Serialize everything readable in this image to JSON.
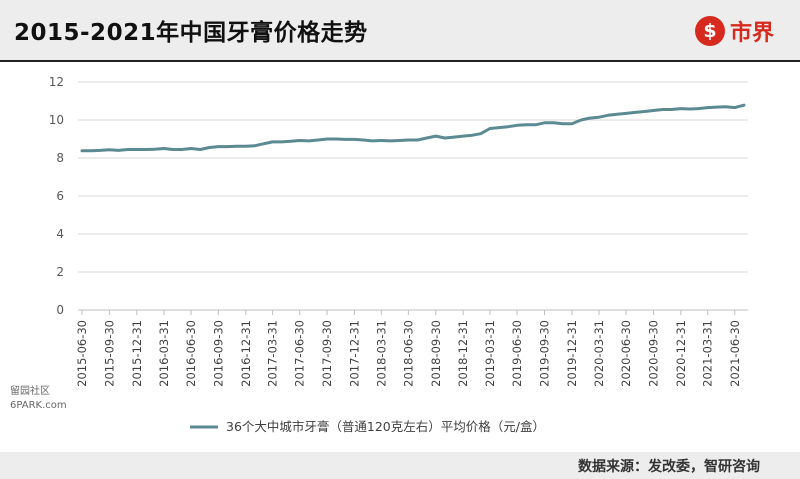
{
  "header": {
    "title": "2015-2021年中国牙膏价格走势",
    "brand_icon": "$",
    "brand_text": "市界"
  },
  "source": "数据来源：发改委，智研咨询",
  "watermark": {
    "line1": "留园社区",
    "line2": "6PARK.com"
  },
  "colors": {
    "line": "#5b8a93",
    "axis": "#bfbfbf",
    "grid": "#d9d9d9",
    "brand": "#d72a1e"
  },
  "chart_data": {
    "type": "line",
    "title": "",
    "xlabel": "",
    "ylabel": "",
    "ylim": [
      0,
      12
    ],
    "yticks": [
      0,
      2,
      4,
      6,
      8,
      10,
      12
    ],
    "grid": true,
    "legend_position": "bottom",
    "xticks": [
      "2015-06-30",
      "2015-09-30",
      "2015-12-31",
      "2016-03-31",
      "2016-06-30",
      "2016-09-30",
      "2016-12-31",
      "2017-03-31",
      "2017-06-30",
      "2017-09-30",
      "2017-12-31",
      "2018-03-31",
      "2018-06-30",
      "2018-09-30",
      "2018-12-31",
      "2019-03-31",
      "2019-06-30",
      "2019-09-30",
      "2019-12-31",
      "2020-03-31",
      "2020-06-30",
      "2020-09-30",
      "2020-12-31",
      "2021-03-31",
      "2021-06-30"
    ],
    "series": [
      {
        "name": "36个大中城市牙膏（普通120克左右）平均价格（元/盒）",
        "x": [
          "2015-06-30",
          "2015-07-31",
          "2015-08-31",
          "2015-09-30",
          "2015-10-31",
          "2015-11-30",
          "2015-12-31",
          "2016-01-31",
          "2016-02-29",
          "2016-03-31",
          "2016-04-30",
          "2016-05-31",
          "2016-06-30",
          "2016-07-31",
          "2016-08-31",
          "2016-09-30",
          "2016-10-31",
          "2016-11-30",
          "2016-12-31",
          "2017-01-31",
          "2017-02-28",
          "2017-03-31",
          "2017-04-30",
          "2017-05-31",
          "2017-06-30",
          "2017-07-31",
          "2017-08-31",
          "2017-09-30",
          "2017-10-31",
          "2017-11-30",
          "2017-12-31",
          "2018-01-31",
          "2018-02-28",
          "2018-03-31",
          "2018-04-30",
          "2018-05-31",
          "2018-06-30",
          "2018-07-31",
          "2018-08-31",
          "2018-09-30",
          "2018-10-31",
          "2018-11-30",
          "2018-12-31",
          "2019-01-31",
          "2019-02-28",
          "2019-03-31",
          "2019-04-30",
          "2019-05-31",
          "2019-06-30",
          "2019-07-31",
          "2019-08-31",
          "2019-09-30",
          "2019-10-31",
          "2019-11-30",
          "2019-12-31",
          "2020-01-31",
          "2020-02-29",
          "2020-03-31",
          "2020-04-30",
          "2020-05-31",
          "2020-06-30",
          "2020-07-31",
          "2020-08-31",
          "2020-09-30",
          "2020-10-31",
          "2020-11-30",
          "2020-12-31",
          "2021-01-31",
          "2021-02-28",
          "2021-03-31",
          "2021-04-30",
          "2021-05-31",
          "2021-06-30",
          "2021-07-31"
        ],
        "values": [
          8.38,
          8.38,
          8.4,
          8.43,
          8.4,
          8.45,
          8.45,
          8.45,
          8.46,
          8.5,
          8.45,
          8.45,
          8.5,
          8.45,
          8.55,
          8.6,
          8.6,
          8.62,
          8.62,
          8.65,
          8.75,
          8.85,
          8.85,
          8.88,
          8.92,
          8.9,
          8.95,
          9.0,
          9.0,
          8.98,
          8.98,
          8.95,
          8.9,
          8.92,
          8.9,
          8.92,
          8.95,
          8.95,
          9.05,
          9.15,
          9.05,
          9.1,
          9.15,
          9.2,
          9.28,
          9.55,
          9.6,
          9.65,
          9.72,
          9.75,
          9.75,
          9.85,
          9.85,
          9.8,
          9.8,
          10.0,
          10.1,
          10.15,
          10.25,
          10.3,
          10.35,
          10.4,
          10.45,
          10.5,
          10.55,
          10.55,
          10.6,
          10.58,
          10.6,
          10.65,
          10.68,
          10.7,
          10.65,
          10.78
        ]
      }
    ]
  }
}
